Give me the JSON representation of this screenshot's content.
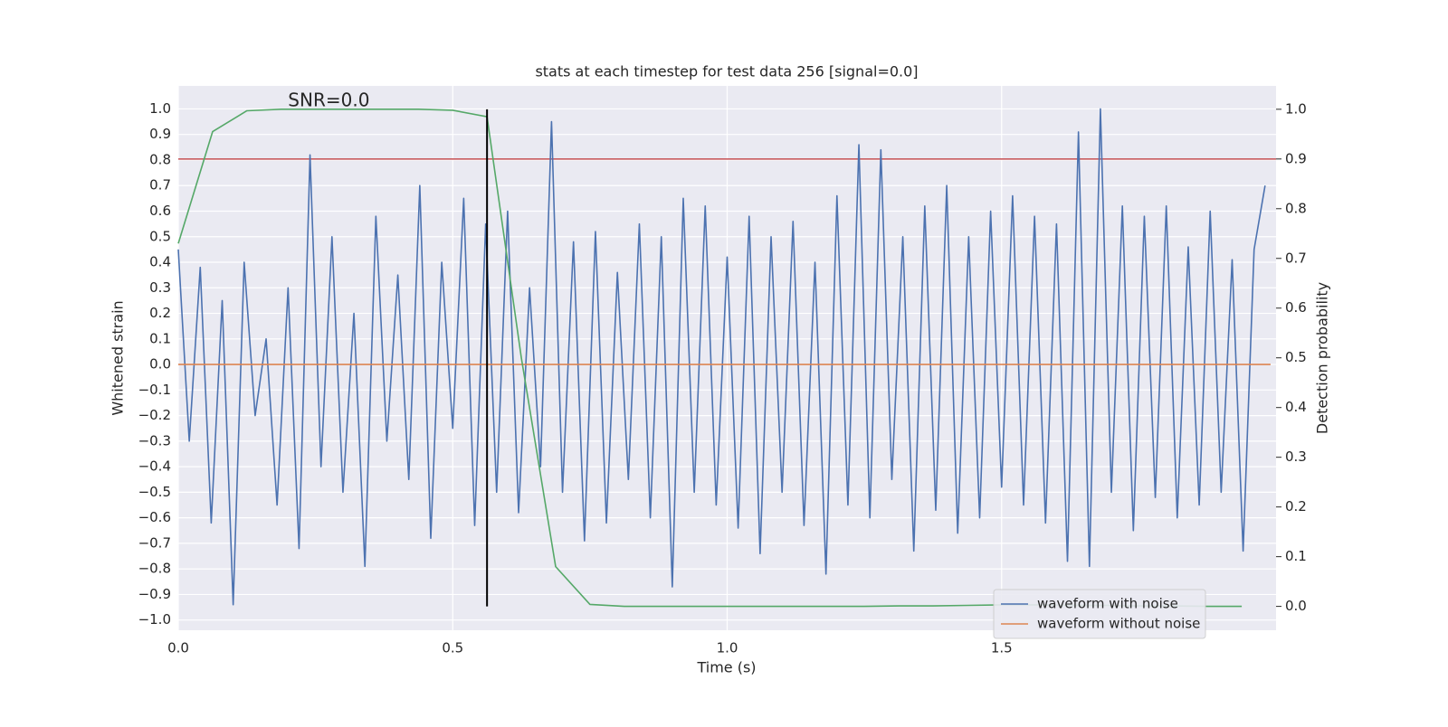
{
  "chart_data": {
    "type": "line",
    "title": "stats at each timestep for test data 256 [signal=0.0]",
    "x_label": "Time (s)",
    "y_label": "Whitened strain",
    "y2_label": "Detection probability",
    "annotation": {
      "text": "SNR=0.0",
      "x": 0.2,
      "y": 1.03
    },
    "xlim": [
      0,
      2.0
    ],
    "ylim": [
      -1.04,
      1.09
    ],
    "y2lim": [
      -0.048,
      1.047
    ],
    "xticks": [
      {
        "value": 0,
        "label": "0.0"
      },
      0.5,
      {
        "value": 1,
        "label": "1.0"
      },
      1.5
    ],
    "yticks": [
      {
        "value": -1,
        "label": "−1.0"
      },
      {
        "value": -0.9,
        "label": "−0.9"
      },
      {
        "value": -0.8,
        "label": "−0.8"
      },
      {
        "value": -0.7,
        "label": "−0.7"
      },
      {
        "value": -0.6,
        "label": "−0.6"
      },
      {
        "value": -0.5,
        "label": "−0.5"
      },
      {
        "value": -0.4,
        "label": "−0.4"
      },
      {
        "value": -0.3,
        "label": "−0.3"
      },
      {
        "value": -0.2,
        "label": "−0.2"
      },
      {
        "value": -0.1,
        "label": "−0.1"
      },
      {
        "value": 0,
        "label": "0.0"
      },
      0.1,
      0.2,
      0.3,
      0.4,
      0.5,
      0.6,
      0.7,
      0.8,
      0.9,
      {
        "value": 1,
        "label": "1.0"
      }
    ],
    "y2ticks": [
      {
        "value": 0,
        "label": "0.0"
      },
      0.1,
      0.2,
      0.3,
      0.4,
      0.5,
      0.6,
      0.7,
      0.8,
      0.9,
      {
        "value": 1,
        "label": "1.0"
      }
    ],
    "grid": true,
    "legend": "lower right",
    "series": [
      {
        "name": "waveform with noise",
        "color": "#4c72b0",
        "x": [
          0,
          0.02,
          0.04,
          0.06,
          0.08,
          0.1,
          0.12,
          0.14,
          0.16,
          0.18,
          0.2,
          0.22,
          0.24,
          0.26,
          0.28,
          0.3,
          0.32,
          0.34,
          0.36,
          0.38,
          0.4,
          0.42,
          0.44,
          0.46,
          0.48,
          0.5,
          0.52,
          0.54,
          0.56,
          0.58,
          0.6,
          0.62,
          0.64,
          0.66,
          0.68,
          0.7,
          0.72,
          0.74,
          0.76,
          0.78,
          0.8,
          0.82,
          0.84,
          0.86,
          0.88,
          0.9,
          0.92,
          0.94,
          0.96,
          0.98,
          1,
          1.02,
          1.04,
          1.06,
          1.08,
          1.1,
          1.12,
          1.14,
          1.16,
          1.18,
          1.2,
          1.22,
          1.24,
          1.26,
          1.28,
          1.3,
          1.32,
          1.34,
          1.36,
          1.38,
          1.4,
          1.42,
          1.44,
          1.46,
          1.48,
          1.5,
          1.52,
          1.54,
          1.56,
          1.58,
          1.6,
          1.62,
          1.64,
          1.66,
          1.68,
          1.7,
          1.72,
          1.74,
          1.76,
          1.78,
          1.8,
          1.82,
          1.84,
          1.86,
          1.88,
          1.9,
          1.92,
          1.94,
          1.96,
          1.98
        ],
        "values": [
          0.45,
          -0.3,
          0.38,
          -0.62,
          0.25,
          -0.94,
          0.4,
          -0.2,
          0.1,
          -0.55,
          0.3,
          -0.72,
          0.82,
          -0.4,
          0.5,
          -0.5,
          0.2,
          -0.79,
          0.58,
          -0.3,
          0.35,
          -0.45,
          0.7,
          -0.68,
          0.4,
          -0.25,
          0.65,
          -0.63,
          0.55,
          -0.5,
          0.6,
          -0.58,
          0.3,
          -0.4,
          0.95,
          -0.5,
          0.48,
          -0.69,
          0.52,
          -0.62,
          0.36,
          -0.45,
          0.55,
          -0.6,
          0.5,
          -0.87,
          0.65,
          -0.5,
          0.62,
          -0.55,
          0.42,
          -0.64,
          0.58,
          -0.74,
          0.5,
          -0.5,
          0.56,
          -0.63,
          0.4,
          -0.82,
          0.66,
          -0.55,
          0.86,
          -0.6,
          0.84,
          -0.45,
          0.5,
          -0.73,
          0.62,
          -0.57,
          0.7,
          -0.66,
          0.5,
          -0.6,
          0.6,
          -0.48,
          0.66,
          -0.55,
          0.58,
          -0.62,
          0.55,
          -0.77,
          0.91,
          -0.79,
          1.0,
          -0.5,
          0.62,
          -0.65,
          0.58,
          -0.52,
          0.62,
          -0.6,
          0.46,
          -0.55,
          0.6,
          -0.5,
          0.41,
          -0.73,
          0.45,
          0.7
        ]
      },
      {
        "name": "waveform without noise",
        "color": "#dd8452",
        "x": [
          0,
          1.99
        ],
        "values": [
          0,
          0
        ]
      },
      {
        "color": "#55a868",
        "axis": "y2",
        "x": [
          0,
          0.0625,
          0.125,
          0.1875,
          0.25,
          0.3125,
          0.375,
          0.4375,
          0.5,
          0.5625,
          0.625,
          0.6875,
          0.75,
          0.8125,
          0.875,
          0.9375,
          1,
          1.0625,
          1.125,
          1.1875,
          1.25,
          1.3125,
          1.375,
          1.4375,
          1.5,
          1.5625,
          1.625,
          1.6875,
          1.75,
          1.8125,
          1.875,
          1.9375
        ],
        "values": [
          0.73,
          0.955,
          0.997,
          1.0,
          1.0,
          1.0,
          1.0,
          1.0,
          0.998,
          0.985,
          0.5,
          0.08,
          0.004,
          0.0,
          0.0,
          0.0,
          0.0,
          0.0,
          0.0,
          0.0,
          0.0,
          0.001,
          0.001,
          0.002,
          0.003,
          0.003,
          0.002,
          0.002,
          0.001,
          0.001,
          0.0,
          0.0
        ]
      }
    ],
    "hlines": [
      {
        "value": 0.9,
        "axis": "y2",
        "color": "#c44e52"
      }
    ],
    "vlines": [
      {
        "value": 0.5625,
        "ymin": 0,
        "ymax": 1,
        "axis": "y2",
        "color": "#000000"
      }
    ]
  }
}
